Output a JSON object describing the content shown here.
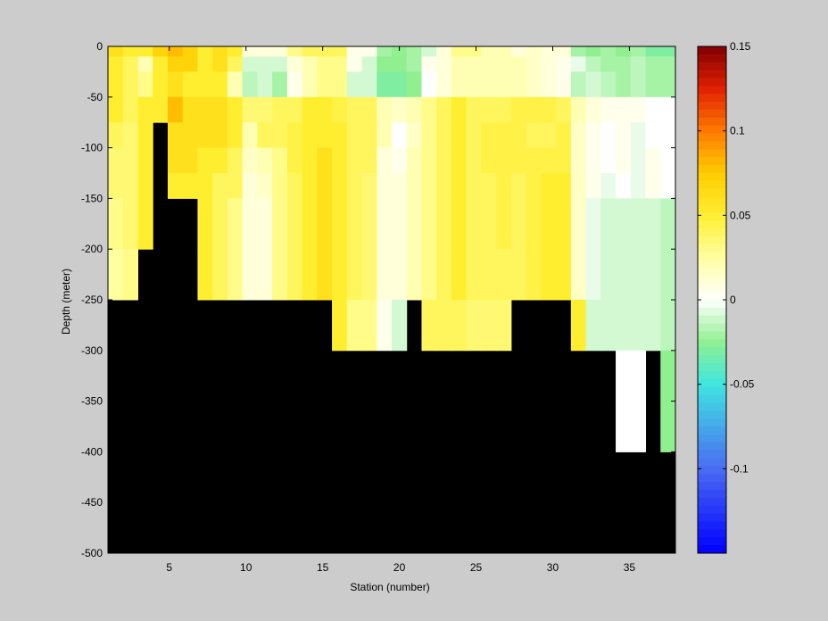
{
  "chart_data": {
    "type": "heatmap",
    "xlabel": "Station (number)",
    "ylabel": "Depth (meter)",
    "xlim": [
      1,
      38
    ],
    "ylim": [
      -500,
      0
    ],
    "xticks": [
      5,
      10,
      15,
      20,
      25,
      30,
      35
    ],
    "yticks": [
      0,
      -50,
      -100,
      -150,
      -200,
      -250,
      -300,
      -350,
      -400,
      -450,
      -500
    ],
    "colorbar": {
      "range": [
        -0.15,
        0.15
      ],
      "ticks": [
        0.15,
        0.1,
        0.05,
        0,
        -0.05,
        -0.1
      ],
      "ticklabels": [
        "0.15",
        "0.1",
        "0.05",
        "0",
        "-0.05",
        "-0.1"
      ],
      "colormap": [
        [
          -0.15,
          "#0000ff"
        ],
        [
          -0.1,
          "#4a6cf2"
        ],
        [
          -0.05,
          "#3fe6e0"
        ],
        [
          -0.025,
          "#90f090"
        ],
        [
          0,
          "#ffffff"
        ],
        [
          0.025,
          "#ffffa0"
        ],
        [
          0.05,
          "#ffee30"
        ],
        [
          0.075,
          "#ffcc00"
        ],
        [
          0.1,
          "#ff7a00"
        ],
        [
          0.125,
          "#e02000"
        ],
        [
          0.15,
          "#800000"
        ]
      ]
    },
    "no_data_color": "#000000",
    "depth_levels": [
      0,
      -10,
      -25,
      -50,
      -75,
      -100,
      -125,
      -150,
      -200,
      -250,
      -300,
      -350,
      -400,
      -450,
      -500
    ],
    "bottom_depth_by_station": [
      -250,
      -250,
      -200,
      -75,
      -150,
      -150,
      -250,
      -250,
      -250,
      -250,
      -250,
      -250,
      -250,
      -250,
      -250,
      -300,
      -300,
      -300,
      -300,
      -300,
      -250,
      -300,
      -300,
      -300,
      -300,
      -300,
      -300,
      -300,
      -250,
      -250,
      -250,
      -300,
      -300,
      -300,
      -400,
      -400,
      -300,
      -400
    ],
    "profiles": [
      {
        "station": 1,
        "values": [
          0.06,
          0.05,
          0.05,
          0.05,
          0.04,
          0.035,
          0.035,
          0.03,
          0.025,
          null,
          null,
          null,
          null,
          null
        ]
      },
      {
        "station": 2,
        "values": [
          0.05,
          0.04,
          0.04,
          0.04,
          0.035,
          0.035,
          0.035,
          0.035,
          0.03,
          null,
          null,
          null,
          null,
          null
        ]
      },
      {
        "station": 3,
        "values": [
          0.05,
          0.02,
          0.03,
          0.05,
          0.05,
          0.05,
          0.05,
          0.05,
          null,
          null,
          null,
          null,
          null,
          null
        ]
      },
      {
        "station": 4,
        "values": [
          0.07,
          0.05,
          0.05,
          0.05,
          null,
          null,
          null,
          null,
          null,
          null,
          null,
          null,
          null,
          null
        ]
      },
      {
        "station": 5,
        "values": [
          0.08,
          0.07,
          0.06,
          0.08,
          0.06,
          0.06,
          0.05,
          null,
          null,
          null,
          null,
          null,
          null,
          null
        ]
      },
      {
        "station": 6,
        "values": [
          0.07,
          0.07,
          0.05,
          0.06,
          0.06,
          0.06,
          0.05,
          null,
          null,
          null,
          null,
          null,
          null,
          null
        ]
      },
      {
        "station": 7,
        "values": [
          0.05,
          0.05,
          0.05,
          0.06,
          0.06,
          0.05,
          0.05,
          0.05,
          0.05,
          null,
          null,
          null,
          null,
          null
        ]
      },
      {
        "station": 8,
        "values": [
          0.06,
          0.06,
          0.05,
          0.06,
          0.06,
          0.05,
          0.04,
          0.04,
          0.04,
          null,
          null,
          null,
          null,
          null
        ]
      },
      {
        "station": 9,
        "values": [
          0.05,
          0.04,
          0.02,
          0.05,
          0.05,
          0.04,
          0.04,
          0.03,
          0.03,
          null,
          null,
          null,
          null,
          null
        ]
      },
      {
        "station": 10,
        "values": [
          0.01,
          -0.01,
          -0.015,
          0.035,
          0.02,
          0.015,
          0.01,
          0.01,
          0.01,
          null,
          null,
          null,
          null,
          null
        ]
      },
      {
        "station": 11,
        "values": [
          0.01,
          -0.01,
          -0.01,
          0.035,
          0.04,
          0.02,
          0.015,
          0.01,
          0.01,
          null,
          null,
          null,
          null,
          null
        ]
      },
      {
        "station": 12,
        "values": [
          0.01,
          -0.01,
          -0.02,
          0.04,
          0.04,
          0.03,
          0.03,
          0.03,
          0.03,
          null,
          null,
          null,
          null,
          null
        ]
      },
      {
        "station": 13,
        "values": [
          0.03,
          0.01,
          0.005,
          0.04,
          0.045,
          0.045,
          0.04,
          0.04,
          0.04,
          null,
          null,
          null,
          null,
          null
        ]
      },
      {
        "station": 14,
        "values": [
          0.04,
          0.02,
          0.02,
          0.05,
          0.05,
          0.05,
          0.05,
          0.05,
          0.05,
          null,
          null,
          null,
          null,
          null
        ]
      },
      {
        "station": 15,
        "values": [
          0.04,
          0.03,
          0.03,
          0.05,
          0.05,
          0.06,
          0.06,
          0.06,
          0.06,
          null,
          null,
          null,
          null,
          null
        ]
      },
      {
        "station": 16,
        "values": [
          0.04,
          0.03,
          0.03,
          0.045,
          0.05,
          0.05,
          0.05,
          0.05,
          0.05,
          0.05,
          null,
          null,
          null,
          null
        ]
      },
      {
        "station": 17,
        "values": [
          0.005,
          0.005,
          -0.01,
          0.04,
          0.04,
          0.04,
          0.04,
          0.04,
          0.04,
          0.03,
          null,
          null,
          null,
          null
        ]
      },
      {
        "station": 18,
        "values": [
          0.005,
          -0.01,
          -0.01,
          0.04,
          0.04,
          0.04,
          0.035,
          0.035,
          0.035,
          0.03,
          null,
          null,
          null,
          null
        ]
      },
      {
        "station": 19,
        "values": [
          -0.02,
          -0.025,
          -0.03,
          0.02,
          0.02,
          0.01,
          0.01,
          0.01,
          0.01,
          0.005,
          null,
          null,
          null,
          null
        ]
      },
      {
        "station": 20,
        "values": [
          -0.025,
          -0.025,
          -0.03,
          0.015,
          0.0,
          0.005,
          0.01,
          0.01,
          0.01,
          -0.01,
          null,
          null,
          null,
          null
        ]
      },
      {
        "station": 21,
        "values": [
          -0.02,
          -0.02,
          -0.025,
          0.02,
          0.015,
          0.02,
          0.02,
          0.02,
          0.02,
          null,
          null,
          null,
          null,
          null
        ]
      },
      {
        "station": 22,
        "values": [
          -0.01,
          0.005,
          0.0,
          0.03,
          0.03,
          0.03,
          0.03,
          0.03,
          0.03,
          0.04,
          null,
          null,
          null,
          null
        ]
      },
      {
        "station": 23,
        "values": [
          0.01,
          0.01,
          0.01,
          0.04,
          0.04,
          0.04,
          0.04,
          0.04,
          0.04,
          0.04,
          null,
          null,
          null,
          null
        ]
      },
      {
        "station": 24,
        "values": [
          0.03,
          0.02,
          0.02,
          0.05,
          0.05,
          0.05,
          0.05,
          0.05,
          0.05,
          0.04,
          null,
          null,
          null,
          null
        ]
      },
      {
        "station": 25,
        "values": [
          0.03,
          0.02,
          0.02,
          0.04,
          0.04,
          0.04,
          0.04,
          0.04,
          0.04,
          0.035,
          null,
          null,
          null,
          null
        ]
      },
      {
        "station": 26,
        "values": [
          0.02,
          0.02,
          0.02,
          0.04,
          0.045,
          0.045,
          0.04,
          0.04,
          0.04,
          0.035,
          null,
          null,
          null,
          null
        ]
      },
      {
        "station": 27,
        "values": [
          0.02,
          0.02,
          0.02,
          0.04,
          0.045,
          0.045,
          0.045,
          0.045,
          0.04,
          0.035,
          null,
          null,
          null,
          null
        ]
      },
      {
        "station": 28,
        "values": [
          0.01,
          0.02,
          0.02,
          0.045,
          0.045,
          0.045,
          0.04,
          0.04,
          0.04,
          null,
          null,
          null,
          null,
          null
        ]
      },
      {
        "station": 29,
        "values": [
          0.015,
          0.015,
          0.015,
          0.045,
          0.04,
          0.045,
          0.045,
          0.045,
          0.045,
          null,
          null,
          null,
          null,
          null
        ]
      },
      {
        "station": 30,
        "values": [
          0.01,
          0.01,
          0.01,
          0.045,
          0.04,
          0.045,
          0.05,
          0.05,
          0.05,
          null,
          null,
          null,
          null,
          null
        ]
      },
      {
        "station": 31,
        "values": [
          0.01,
          0.005,
          0.005,
          0.04,
          0.045,
          0.045,
          0.05,
          0.05,
          0.05,
          null,
          null,
          null,
          null,
          null
        ]
      },
      {
        "station": 32,
        "values": [
          -0.02,
          -0.005,
          -0.015,
          0.02,
          0.015,
          0.015,
          0.015,
          0.015,
          0.015,
          0.05,
          null,
          null,
          null,
          null
        ]
      },
      {
        "station": 33,
        "values": [
          -0.025,
          -0.015,
          -0.01,
          0.01,
          0.005,
          0.005,
          0.005,
          -0.005,
          -0.005,
          -0.01,
          null,
          null,
          null,
          null
        ]
      },
      {
        "station": 34,
        "values": [
          -0.02,
          -0.02,
          -0.015,
          0.005,
          0.0,
          0.0,
          -0.005,
          -0.01,
          -0.01,
          -0.01,
          null,
          null,
          null,
          null
        ]
      },
      {
        "station": 35,
        "values": [
          -0.025,
          -0.02,
          -0.02,
          0.005,
          0.005,
          0.005,
          0.0,
          -0.01,
          -0.01,
          -0.01,
          0.0,
          0.0,
          null,
          null
        ]
      },
      {
        "station": 36,
        "values": [
          -0.02,
          -0.015,
          -0.015,
          0.005,
          -0.005,
          -0.005,
          -0.005,
          -0.01,
          -0.01,
          -0.01,
          0.0,
          0.0,
          null,
          null
        ]
      },
      {
        "station": 37,
        "values": [
          -0.03,
          -0.02,
          -0.02,
          0.0,
          0.0,
          0.005,
          0.005,
          -0.01,
          -0.01,
          -0.01,
          null,
          null,
          null,
          null
        ]
      },
      {
        "station": 38,
        "values": [
          -0.03,
          -0.02,
          -0.02,
          0.0,
          0.0,
          0.0,
          0.0,
          -0.015,
          -0.015,
          -0.015,
          -0.025,
          -0.025,
          null,
          null
        ]
      }
    ]
  }
}
